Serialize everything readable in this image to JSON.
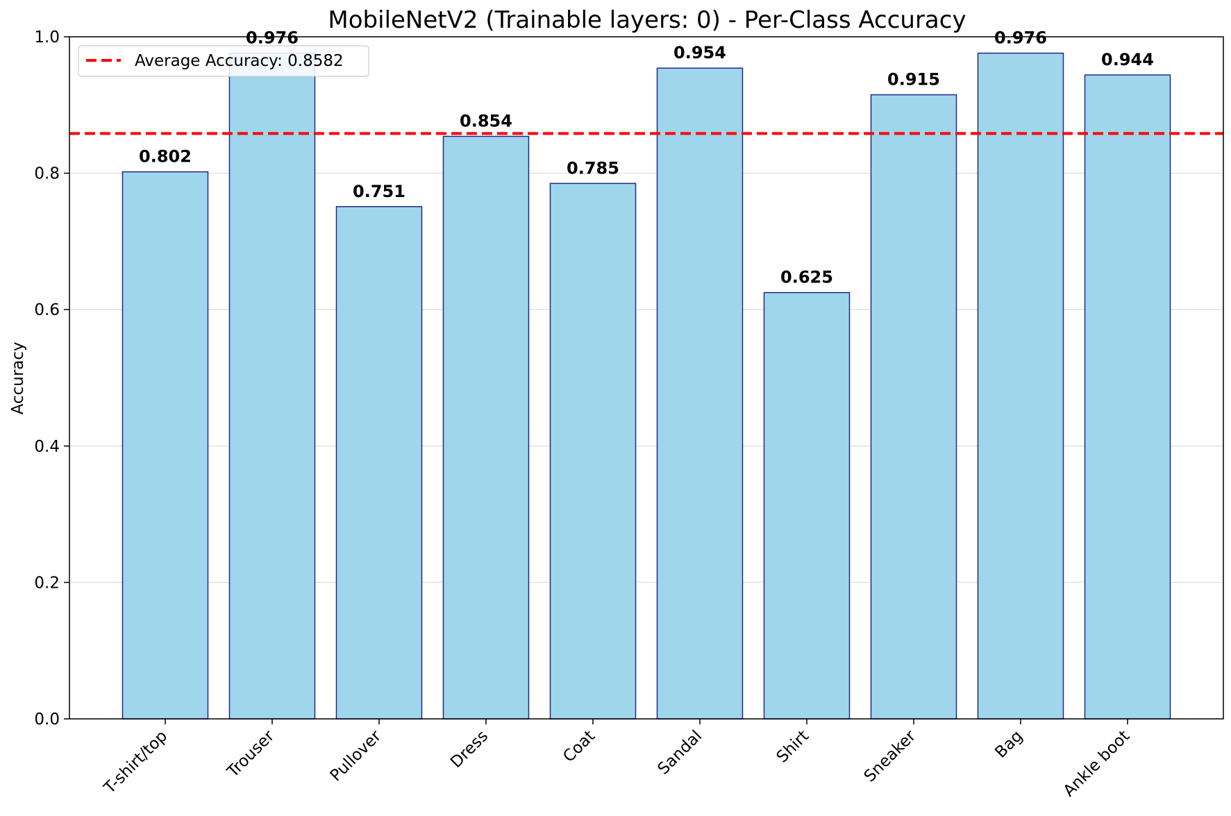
{
  "chart_data": {
    "type": "bar",
    "title": "MobileNetV2 (Trainable layers: 0) - Per-Class Accuracy",
    "xlabel": "",
    "ylabel": "Accuracy",
    "categories": [
      "T-shirt/top",
      "Trouser",
      "Pullover",
      "Dress",
      "Coat",
      "Sandal",
      "Shirt",
      "Sneaker",
      "Bag",
      "Ankle boot"
    ],
    "values": [
      0.802,
      0.976,
      0.751,
      0.854,
      0.785,
      0.954,
      0.625,
      0.915,
      0.976,
      0.944
    ],
    "value_labels": [
      "0.802",
      "0.976",
      "0.751",
      "0.854",
      "0.785",
      "0.954",
      "0.625",
      "0.915",
      "0.976",
      "0.944"
    ],
    "ylim": [
      0,
      1.0
    ],
    "yticks": [
      0.0,
      0.2,
      0.4,
      0.6,
      0.8,
      1.0
    ],
    "ytick_labels": [
      "0.0",
      "0.2",
      "0.4",
      "0.6",
      "0.8",
      "1.0"
    ],
    "grid": "y-axis, light",
    "reference_line": {
      "value": 0.8582,
      "label": "Average Accuracy: 0.8582",
      "style": "dashed",
      "color": "#ff0000"
    },
    "legend_position": "top-left",
    "bar_fill": "#a0d6ec",
    "bar_edge": "#1f2a8c"
  }
}
